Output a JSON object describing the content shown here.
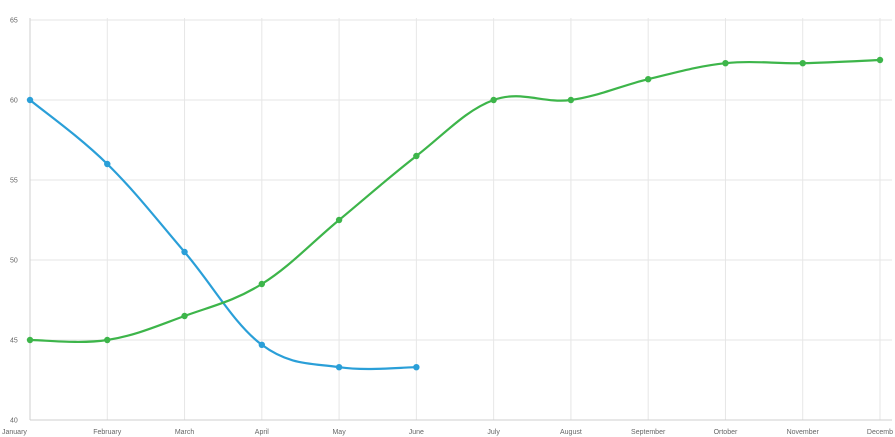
{
  "chart_data": {
    "type": "line",
    "categories": [
      "January",
      "February",
      "March",
      "April",
      "May",
      "June",
      "July",
      "August",
      "September",
      "Ortober",
      "November",
      "Decemb"
    ],
    "series": [
      {
        "color": "#2a9fd8",
        "values": [
          60,
          56,
          50.5,
          44.7,
          43.3,
          43.3,
          null,
          null,
          null,
          null,
          null,
          null
        ]
      },
      {
        "color": "#3db54a",
        "values": [
          45,
          45,
          46.5,
          48.5,
          52.5,
          56.5,
          60,
          60,
          61.3,
          62.3,
          62.3,
          62.5
        ]
      }
    ],
    "y_ticks": [
      "40",
      "45",
      "50",
      "55",
      "60",
      "65"
    ],
    "ylim": [
      40,
      65
    ],
    "grid": true,
    "title": "",
    "xlabel": "",
    "ylabel": ""
  }
}
